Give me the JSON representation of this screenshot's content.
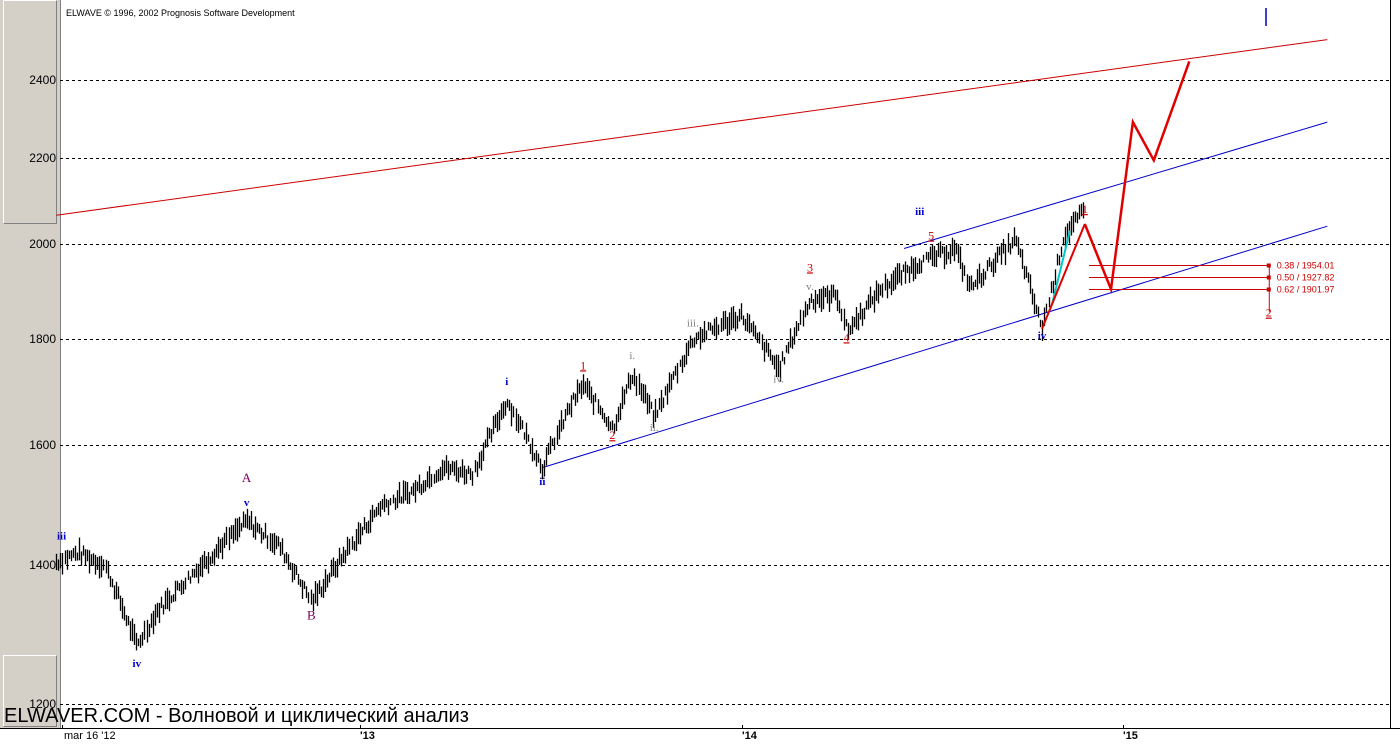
{
  "header": {
    "copyright": "ELWAVE © 1996, 2002 Prognosis Software Development"
  },
  "footer": {
    "watermark": "ELWAVER.COM - Волновой и циклический анализ"
  },
  "colors": {
    "price_bars": "#000000",
    "wave_blue": "#0000cc",
    "wave_red": "#cc0000",
    "wave_gray": "#808080",
    "wave_purple": "#800060",
    "channel_blue": "#0000cc",
    "channel_red": "#cc0000",
    "forecast_red": "#e00000",
    "highlight_cyan": "#00c8c8"
  },
  "chart_data": {
    "type": "line",
    "y_ticks": [
      "2400",
      "2200",
      "2000",
      "1800",
      "1600",
      "1400",
      "1200"
    ],
    "x_ticks": [
      "mar 16 '12",
      "'13",
      "'14",
      "'15"
    ],
    "ylim": [
      1200,
      2520
    ],
    "grid": true,
    "series": [
      {
        "x": [
          "2012-03-16",
          "2012-04-05",
          "2012-05-01",
          "2012-06-01",
          "2012-06-20",
          "2012-07-20",
          "2012-09-14",
          "2012-10-15",
          "2012-11-15",
          "2012-12-20",
          "2013-01-20",
          "2013-02-20",
          "2013-03-20",
          "2013-04-18",
          "2013-05-21",
          "2013-06-24",
          "2013-07-20",
          "2013-08-02",
          "2013-08-30",
          "2013-09-18",
          "2013-10-09",
          "2013-11-15",
          "2013-12-31",
          "2014-02-05",
          "2014-03-07",
          "2014-04-02",
          "2014-04-11",
          "2014-05-15",
          "2014-06-20",
          "2014-07-24",
          "2014-08-07",
          "2014-09-19",
          "2014-10-15",
          "2014-11-05",
          "2014-11-25"
        ],
        "values": [
          1405,
          1419,
          1400,
          1280,
          1330,
          1380,
          1470,
          1430,
          1345,
          1425,
          1495,
          1520,
          1560,
          1550,
          1680,
          1560,
          1670,
          1710,
          1630,
          1730,
          1650,
          1800,
          1848,
          1740,
          1880,
          1890,
          1815,
          1905,
          1960,
          1990,
          1905,
          2010,
          1820,
          2020,
          2075
        ]
      },
      {
        "name": "forecast",
        "x": [
          "2014-11-25",
          "2014-12-20",
          "2015-01-10",
          "2015-01-30",
          "2015-03-05"
        ],
        "values": [
          2045,
          1902,
          2290,
          2195,
          2450
        ]
      }
    ],
    "fib_retracements": [
      {
        "label": "0.38 / 1954.01",
        "value": 1954.01
      },
      {
        "label": "0.50 / 1927.82",
        "value": 1927.82
      },
      {
        "label": "0.62 / 1901.97",
        "value": 1901.97
      }
    ],
    "channels": [
      {
        "color": "red",
        "from": [
          "2012-03-16",
          2065
        ],
        "to": [
          "2015-07-15",
          2510
        ]
      },
      {
        "color": "blue",
        "from": [
          "2014-06-05",
          1990
        ],
        "to": [
          "2015-07-15",
          2290
        ]
      },
      {
        "color": "blue",
        "from": [
          "2013-06-24",
          1560
        ],
        "to": [
          "2015-07-15",
          2040
        ]
      }
    ],
    "wave_labels": [
      {
        "text": "iii",
        "color": "blue",
        "x": "2012-03-21",
        "y": 1440
      },
      {
        "text": "iv",
        "color": "blue",
        "x": "2012-06-01",
        "y": 1250
      },
      {
        "text": "A",
        "color": "purple",
        "x": "2012-09-14",
        "y": 1535
      },
      {
        "text": "v",
        "color": "blue",
        "x": "2012-09-14",
        "y": 1495
      },
      {
        "text": "B",
        "color": "purple",
        "x": "2012-11-15",
        "y": 1318
      },
      {
        "text": "i",
        "color": "blue",
        "x": "2013-05-21",
        "y": 1710
      },
      {
        "text": "ii",
        "color": "blue",
        "x": "2013-06-24",
        "y": 1530
      },
      {
        "text": "1",
        "color": "red",
        "x": "2013-08-02",
        "y": 1740
      },
      {
        "text": "2",
        "color": "red",
        "x": "2013-08-30",
        "y": 1610
      },
      {
        "text": "i.",
        "color": "gray",
        "x": "2013-09-18",
        "y": 1760
      },
      {
        "text": "ii.",
        "color": "gray",
        "x": "2013-10-09",
        "y": 1625
      },
      {
        "text": "iii.",
        "color": "gray",
        "x": "2013-11-15",
        "y": 1825
      },
      {
        "text": "iv.",
        "color": "gray",
        "x": "2014-02-05",
        "y": 1715
      },
      {
        "text": "v.",
        "color": "gray",
        "x": "2014-03-07",
        "y": 1900
      },
      {
        "text": "3",
        "color": "red",
        "x": "2014-03-07",
        "y": 1940
      },
      {
        "text": "4",
        "color": "red",
        "x": "2014-04-11",
        "y": 1795
      },
      {
        "text": "iii",
        "color": "blue",
        "x": "2014-06-20",
        "y": 2065
      },
      {
        "text": "5",
        "color": "red",
        "x": "2014-07-01",
        "y": 2010
      },
      {
        "text": "iv",
        "color": "blue",
        "x": "2014-10-15",
        "y": 1800
      },
      {
        "text": "1",
        "color": "red",
        "x": "2014-11-25",
        "y": 2070
      },
      {
        "text": "2",
        "color": "red",
        "x": "2015-05-20",
        "y": 1845
      }
    ]
  }
}
